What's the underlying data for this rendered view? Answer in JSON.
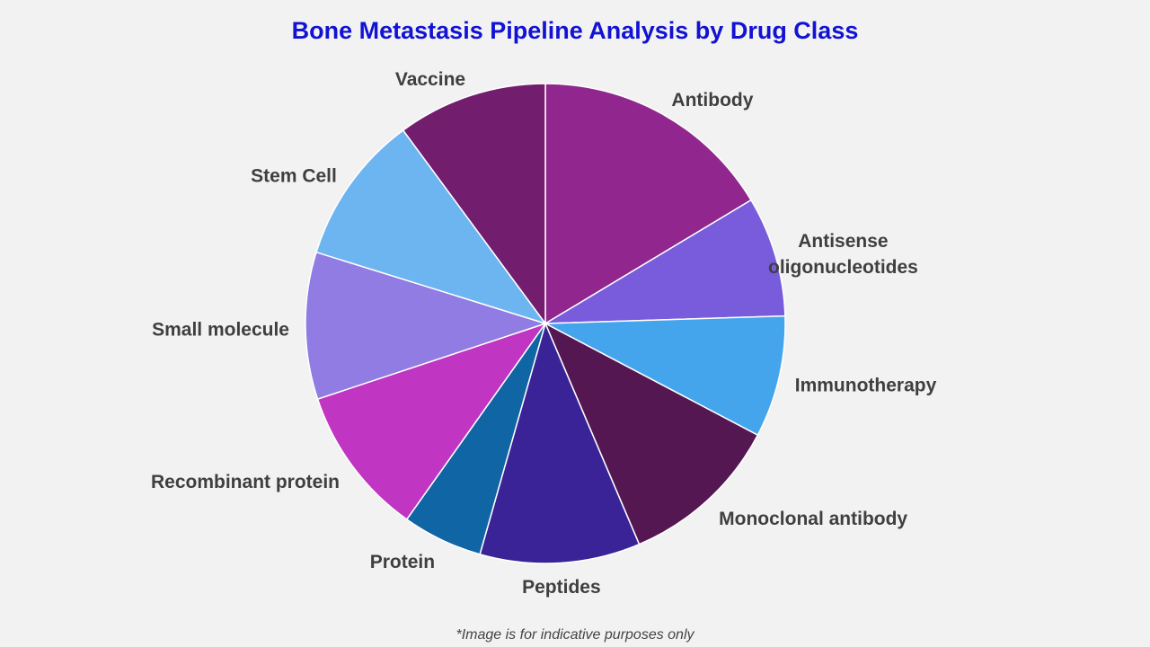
{
  "chart_data": {
    "type": "pie",
    "title": "Bone Metastasis Pipeline Analysis by Drug Class",
    "categories": [
      "Antibody",
      "Antisense oligonucleotides",
      "Immunotherapy",
      "Monoclonal antibody",
      "Peptides",
      "Protein",
      "Recombinant protein",
      "Small molecule",
      "Stem Cell",
      "Vaccine"
    ],
    "values": [
      16.4,
      8.1,
      8.2,
      10.9,
      10.8,
      5.4,
      10.1,
      9.9,
      10.1,
      10.1
    ],
    "colors": [
      "#90268e",
      "#785cdc",
      "#45a5ec",
      "#551752",
      "#3a2396",
      "#1065a5",
      "#c035c2",
      "#907ce2",
      "#6cb5f1",
      "#721d6e"
    ],
    "footnote": "*Image is for indicative purposes only"
  }
}
